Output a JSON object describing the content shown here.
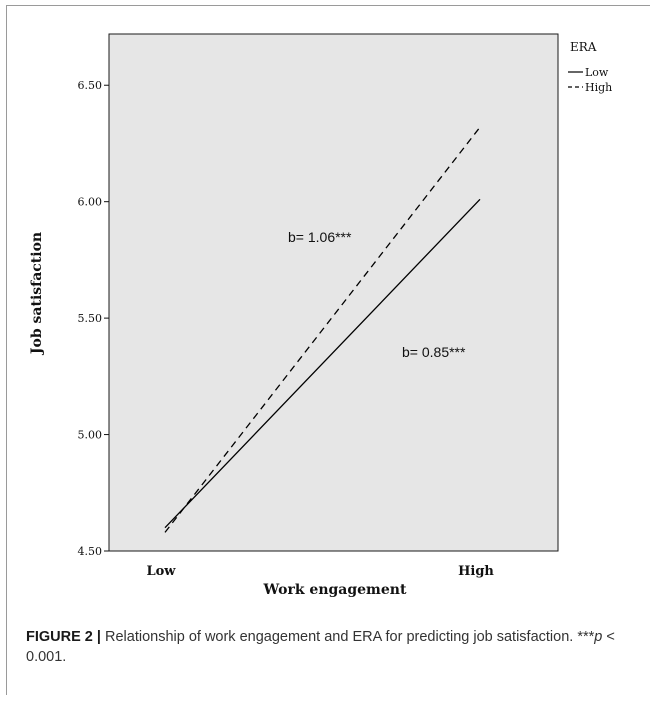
{
  "chart_data": {
    "type": "line",
    "categories": [
      "Low",
      "High"
    ],
    "x_tick_labels": [
      "Low",
      "High"
    ],
    "y_ticks": [
      "4.50",
      "5.00",
      "5.50",
      "6.00",
      "6.50"
    ],
    "ylim": [
      4.5,
      6.72
    ],
    "xlabel": "Work engagement",
    "ylabel": "Job satisfaction",
    "legend": {
      "title": "ERA",
      "position": "top-right",
      "entries": [
        {
          "name": "Low",
          "style": "solid"
        },
        {
          "name": "High",
          "style": "dashed"
        }
      ]
    },
    "series": [
      {
        "name": "Low",
        "style": "solid",
        "values": [
          4.6,
          6.01
        ]
      },
      {
        "name": "High",
        "style": "dashed",
        "values": [
          4.58,
          6.32
        ]
      }
    ],
    "annotations": [
      {
        "text": "b= 1.06***",
        "series": "High"
      },
      {
        "text": "b= 0.85***",
        "series": "Low"
      }
    ],
    "plot_background": "#e6e6e6",
    "line_color": "#000000",
    "grid": false
  },
  "caption": {
    "lead": "FIGURE 2 |",
    "text": " Relationship of work engagement and ERA for predicting job satisfaction. ***",
    "p_symbol": "p",
    "tail": " < 0.001."
  }
}
